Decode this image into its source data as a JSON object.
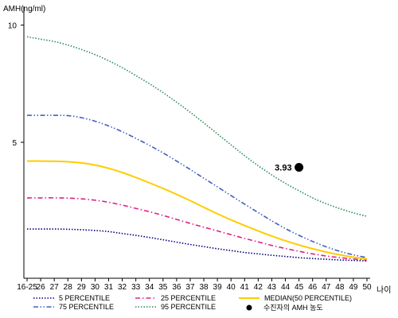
{
  "chart_data": {
    "type": "line",
    "ylabel": "AMH(ng/ml)",
    "xlabel": "나이",
    "x_ticks": [
      "16-25",
      "26",
      "27",
      "28",
      "29",
      "30",
      "31",
      "32",
      "33",
      "34",
      "35",
      "36",
      "37",
      "38",
      "39",
      "40",
      "41",
      "42",
      "43",
      "44",
      "45",
      "46",
      "47",
      "48",
      "49",
      "50"
    ],
    "ylim": [
      -0.8,
      10.8
    ],
    "y_ticks": [
      5,
      10
    ],
    "grid": false,
    "legend_position": "bottom",
    "series": [
      {
        "name": "5 PERCENTILE",
        "color": "#000080",
        "style": "dotted",
        "values": [
          1.3,
          1.3,
          1.3,
          1.29,
          1.27,
          1.24,
          1.19,
          1.11,
          1.03,
          0.94,
          0.84,
          0.74,
          0.64,
          0.55,
          0.46,
          0.38,
          0.3,
          0.24,
          0.18,
          0.13,
          0.08,
          0.04,
          0.01,
          -0.02,
          -0.04,
          -0.06
        ]
      },
      {
        "name": "25 PERCENTILE",
        "color": "#e0218a",
        "style": "dashdot",
        "values": [
          2.63,
          2.63,
          2.63,
          2.62,
          2.59,
          2.53,
          2.44,
          2.32,
          2.18,
          2.04,
          1.88,
          1.71,
          1.54,
          1.38,
          1.22,
          1.06,
          0.9,
          0.75,
          0.6,
          0.47,
          0.35,
          0.24,
          0.15,
          0.08,
          0.02,
          -0.02
        ]
      },
      {
        "name": "MEDIAN(50 PERCENTILE)",
        "color": "#ffcc00",
        "style": "solid",
        "values": [
          4.2,
          4.2,
          4.19,
          4.17,
          4.12,
          4.03,
          3.89,
          3.71,
          3.5,
          3.27,
          3.03,
          2.78,
          2.51,
          2.23,
          1.95,
          1.69,
          1.45,
          1.22,
          1.0,
          0.8,
          0.62,
          0.46,
          0.32,
          0.2,
          0.1,
          0.02
        ]
      },
      {
        "name": "75 PERCENTILE",
        "color": "#4060c0",
        "style": "dashdotdot",
        "values": [
          6.15,
          6.15,
          6.15,
          6.14,
          6.05,
          5.9,
          5.7,
          5.45,
          5.17,
          4.87,
          4.55,
          4.2,
          3.84,
          3.47,
          3.1,
          2.73,
          2.36,
          2.0,
          1.65,
          1.32,
          1.03,
          0.77,
          0.54,
          0.35,
          0.2,
          0.08
        ]
      },
      {
        "name": "95 PERCENTILE",
        "color": "#2e8b57",
        "style": "dotted",
        "values": [
          9.5,
          9.4,
          9.3,
          9.15,
          8.96,
          8.74,
          8.48,
          8.18,
          7.85,
          7.5,
          7.12,
          6.71,
          6.28,
          5.83,
          5.36,
          4.89,
          4.43,
          4.0,
          3.61,
          3.25,
          2.93,
          2.63,
          2.38,
          2.17,
          1.99,
          1.84
        ]
      }
    ],
    "patient": {
      "legend": "수진자의 AMH 농도",
      "x": "45",
      "value": 3.93,
      "label": "3.93"
    }
  }
}
